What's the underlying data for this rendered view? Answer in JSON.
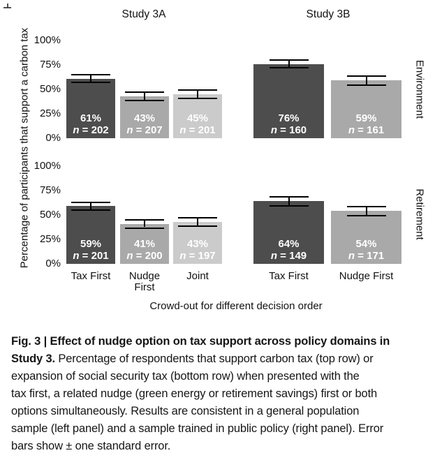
{
  "figure": {
    "corner_mark": "small cropped tick fragment",
    "caption": {
      "lines": [
        {
          "bold": "Fig. 3 | Effect of nudge option on tax support across policy domains in",
          "text": ""
        },
        {
          "bold": "Study 3.",
          "text": " Percentage of respondents that support carbon tax (top row) or"
        },
        {
          "bold": "",
          "text": "expansion of social security tax (bottom row) when presented with the"
        },
        {
          "bold": "",
          "text": "tax first, a related nudge (green energy or retirement savings) first or both"
        },
        {
          "bold": "",
          "text": "options simultaneously. Results are consistent in a general population"
        },
        {
          "bold": "",
          "text": "sample (left panel) and a sample trained in public policy (right panel). Error"
        },
        {
          "bold": "",
          "text": "bars show ± one standard error."
        }
      ]
    }
  },
  "chart_data": {
    "type": "bar",
    "title": "",
    "col_titles": [
      "Study 3A",
      "Study 3B"
    ],
    "row_labels": [
      "Environment",
      "Retirement"
    ],
    "ylabel": "Percentage of participants that support a carbon tax",
    "xlabel": "Crowd-out for different decision order",
    "yticks": [
      "0%",
      "25%",
      "50%",
      "75%",
      "100%"
    ],
    "ylim": [
      0,
      100
    ],
    "grid": false,
    "legend": "none",
    "error_bars": "plus-minus one standard error",
    "colors": {
      "dark": "#4d4d4d",
      "medium": "#a9a9a9",
      "light": "#cbcbcb"
    },
    "panels": [
      {
        "study": "Study 3A",
        "domain": "Environment",
        "row": 0,
        "col": 0,
        "categories": [
          "Tax First",
          "Nudge\nFirst",
          "Joint"
        ],
        "bars": [
          {
            "category": "Tax First",
            "pct": 61,
            "n": 202,
            "se": 3.4,
            "shade": "dark"
          },
          {
            "category": "Nudge First",
            "pct": 43,
            "n": 207,
            "se": 3.4,
            "shade": "medium"
          },
          {
            "category": "Joint",
            "pct": 45,
            "n": 201,
            "se": 3.5,
            "shade": "light"
          }
        ]
      },
      {
        "study": "Study 3B",
        "domain": "Environment",
        "row": 0,
        "col": 1,
        "categories": [
          "Tax First",
          "Nudge First"
        ],
        "bars": [
          {
            "category": "Tax First",
            "pct": 76,
            "n": 160,
            "se": 3.4,
            "shade": "dark"
          },
          {
            "category": "Nudge First",
            "pct": 59,
            "n": 161,
            "se": 3.9,
            "shade": "medium"
          }
        ]
      },
      {
        "study": "Study 3A",
        "domain": "Retirement",
        "row": 1,
        "col": 0,
        "categories": [
          "Tax First",
          "Nudge\nFirst",
          "Joint"
        ],
        "bars": [
          {
            "category": "Tax First",
            "pct": 59,
            "n": 201,
            "se": 3.5,
            "shade": "dark"
          },
          {
            "category": "Nudge First",
            "pct": 41,
            "n": 200,
            "se": 3.5,
            "shade": "medium"
          },
          {
            "category": "Joint",
            "pct": 43,
            "n": 197,
            "se": 3.5,
            "shade": "light"
          }
        ]
      },
      {
        "study": "Study 3B",
        "domain": "Retirement",
        "row": 1,
        "col": 1,
        "categories": [
          "Tax First",
          "Nudge First"
        ],
        "bars": [
          {
            "category": "Tax First",
            "pct": 64,
            "n": 149,
            "se": 3.9,
            "shade": "dark"
          },
          {
            "category": "Nudge First",
            "pct": 54,
            "n": 171,
            "se": 3.8,
            "shade": "medium"
          }
        ]
      }
    ]
  }
}
